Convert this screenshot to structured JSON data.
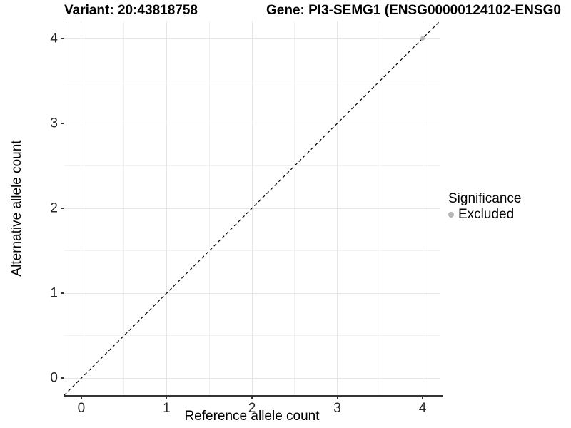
{
  "header": {
    "left_title": "Variant: 20:43818758",
    "right_title": "Gene: PI3-SEMG1 (ENSG00000124102-ENSG0"
  },
  "chart_data": {
    "type": "scatter",
    "xlabel": "Reference allele count",
    "ylabel": "Alternative allele count",
    "xlim": [
      -0.2,
      4.2
    ],
    "ylim": [
      -0.2,
      4.2
    ],
    "x_ticks": [
      0,
      1,
      2,
      3,
      4
    ],
    "y_ticks": [
      0,
      1,
      2,
      3,
      4
    ],
    "x_minor": [
      0.5,
      1.5,
      2.5,
      3.5
    ],
    "y_minor": [
      0.5,
      1.5,
      2.5,
      3.5
    ],
    "grid": true,
    "reference_line": {
      "type": "identity",
      "style": "dashed",
      "x1": -0.2,
      "y1": -0.2,
      "x2": 4.2,
      "y2": 4.2
    },
    "series": [
      {
        "name": "Excluded",
        "color": "#b5b5b5",
        "points": [
          {
            "x": 4,
            "y": 4
          }
        ]
      }
    ],
    "legend": {
      "title": "Significance",
      "position": "right",
      "items": [
        {
          "label": "Excluded",
          "color": "#b5b5b5",
          "shape": "circle"
        }
      ]
    }
  },
  "colors": {
    "background": "#ffffff",
    "axis": "#333333",
    "tick_label": "#262626",
    "grid_major": "#e6e6e6",
    "grid_minor": "#f2f2f2",
    "dashed_line": "#000000"
  }
}
